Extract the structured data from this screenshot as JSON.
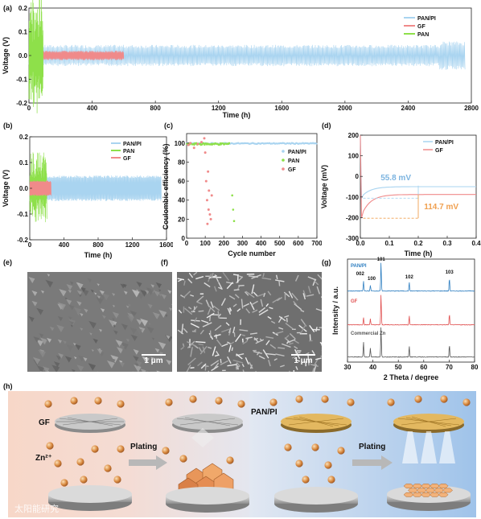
{
  "panels": {
    "a": {
      "label": "(a)"
    },
    "b": {
      "label": "(b)"
    },
    "c": {
      "label": "(c)"
    },
    "d": {
      "label": "(d)"
    },
    "e": {
      "label": "(e)"
    },
    "f": {
      "label": "(f)"
    },
    "g": {
      "label": "(g)"
    },
    "h": {
      "label": "(h)"
    }
  },
  "colors": {
    "pan_pi": "#a9d4f0",
    "gf": "#f08a8a",
    "pan": "#8ee04a",
    "xrd_panpi": "#2f7fc1",
    "xrd_gf": "#e05050",
    "xrd_zn": "#555555"
  },
  "chart_data": [
    {
      "id": "a",
      "type": "line",
      "xlabel": "Time (h)",
      "ylabel": "Voltage (V)",
      "xlim": [
        0,
        2800
      ],
      "ylim": [
        -0.2,
        0.2
      ],
      "x_ticks": [
        "0",
        "400",
        "800",
        "1200",
        "1600",
        "2000",
        "2400",
        "2800"
      ],
      "y_ticks": [
        "-0.2",
        "-0.1",
        "0.0",
        "0.1",
        "0.2"
      ],
      "legend_position": "top-right",
      "series": [
        {
          "name": "PAN/PI",
          "x_end": 2760,
          "amplitude": 0.045
        },
        {
          "name": "GF",
          "x_end": 600,
          "amplitude": 0.02
        },
        {
          "name": "PAN",
          "x_end": 90,
          "amplitude": 0.2
        }
      ]
    },
    {
      "id": "b",
      "type": "line",
      "xlabel": "Time (h)",
      "ylabel": "Voltage (V)",
      "xlim": [
        0,
        1600
      ],
      "ylim": [
        -0.2,
        0.2
      ],
      "x_ticks": [
        "0",
        "400",
        "800",
        "1200",
        "1600"
      ],
      "y_ticks": [
        "-0.2",
        "-0.1",
        "0.0",
        "0.1",
        "0.2"
      ],
      "legend_position": "top-right",
      "series": [
        {
          "name": "PAN/PI",
          "x_end": 1540,
          "amplitude": 0.05
        },
        {
          "name": "PAN",
          "x_end": 200,
          "amplitude": 0.1
        },
        {
          "name": "GF",
          "x_end": 250,
          "amplitude": 0.03
        }
      ]
    },
    {
      "id": "c",
      "type": "scatter",
      "xlabel": "Cycle number",
      "ylabel": "Coulombic efficiency (%)",
      "xlim": [
        0,
        700
      ],
      "ylim": [
        0,
        110
      ],
      "x_ticks": [
        "0",
        "100",
        "200",
        "300",
        "400",
        "500",
        "600",
        "700"
      ],
      "y_ticks": [
        "0",
        "20",
        "40",
        "60",
        "80",
        "100"
      ],
      "legend_position": "right",
      "series": [
        {
          "name": "PAN/PI",
          "value": 99.6,
          "x_range": [
            1,
            700
          ]
        },
        {
          "name": "PAN",
          "x": [
            245,
            250,
            255
          ],
          "y": [
            45,
            30,
            18
          ]
        },
        {
          "name": "GF",
          "x": [
            10,
            20,
            40,
            60,
            80,
            95,
            100,
            105,
            110,
            112,
            115,
            118,
            120,
            125,
            130,
            135
          ],
          "y": [
            98,
            100,
            95,
            99,
            101,
            105,
            90,
            60,
            40,
            15,
            70,
            30,
            50,
            25,
            20,
            45
          ]
        }
      ]
    },
    {
      "id": "d",
      "type": "line",
      "xlabel": "Time (h)",
      "ylabel": "Voltage (mV)",
      "xlim": [
        0,
        0.4
      ],
      "ylim": [
        -300,
        200
      ],
      "x_ticks": [
        "0.0",
        "0.1",
        "0.2",
        "0.3",
        "0.4"
      ],
      "y_ticks": [
        "-300",
        "-200",
        "-100",
        "0",
        "100",
        "200"
      ],
      "legend_position": "top-right",
      "annotations": [
        "55.8 mV",
        "114.7 mV"
      ],
      "series": [
        {
          "name": "PAN/PI",
          "plateau": -50,
          "nucleation": -106
        },
        {
          "name": "GF",
          "plateau": -88,
          "nucleation": -203
        }
      ]
    },
    {
      "id": "g",
      "type": "line",
      "xlabel": "2 Theta / degree",
      "ylabel": "Intensity / a.u.",
      "xlim": [
        30,
        80
      ],
      "x_ticks": [
        "30",
        "40",
        "50",
        "60",
        "70",
        "80"
      ],
      "peak_labels": [
        "002",
        "100",
        "101",
        "102",
        "103"
      ],
      "series": [
        {
          "name": "PAN/PI",
          "peaks": [
            [
              36.3,
              0.35
            ],
            [
              39.0,
              0.2
            ],
            [
              43.2,
              1.0
            ],
            [
              54.3,
              0.3
            ],
            [
              70.1,
              0.45
            ]
          ]
        },
        {
          "name": "GF",
          "peaks": [
            [
              36.3,
              0.25
            ],
            [
              39.0,
              0.2
            ],
            [
              43.2,
              1.0
            ],
            [
              54.3,
              0.3
            ],
            [
              70.1,
              0.35
            ]
          ]
        },
        {
          "name": "Commercial Zn",
          "peaks": [
            [
              36.3,
              0.5
            ],
            [
              39.0,
              0.3
            ],
            [
              43.2,
              1.0
            ],
            [
              54.3,
              0.35
            ],
            [
              70.1,
              0.4
            ]
          ]
        }
      ]
    }
  ],
  "sem": {
    "scale_e": "1 μm",
    "scale_f": "1 μm"
  },
  "schematic": {
    "gf_label": "GF",
    "panpi_label": "PAN/PI",
    "zn_label": "Zn²⁺",
    "plating1": "Plating",
    "plating2": "Plating"
  },
  "watermark": "太阳能研究"
}
